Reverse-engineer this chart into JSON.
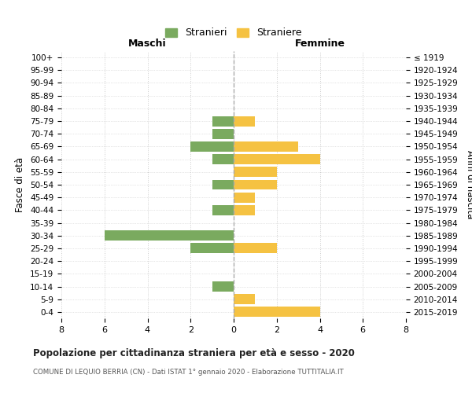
{
  "age_groups": [
    "100+",
    "95-99",
    "90-94",
    "85-89",
    "80-84",
    "75-79",
    "70-74",
    "65-69",
    "60-64",
    "55-59",
    "50-54",
    "45-49",
    "40-44",
    "35-39",
    "30-34",
    "25-29",
    "20-24",
    "15-19",
    "10-14",
    "5-9",
    "0-4"
  ],
  "birth_years": [
    "≤ 1919",
    "1920-1924",
    "1925-1929",
    "1930-1934",
    "1935-1939",
    "1940-1944",
    "1945-1949",
    "1950-1954",
    "1955-1959",
    "1960-1964",
    "1965-1969",
    "1970-1974",
    "1975-1979",
    "1980-1984",
    "1985-1989",
    "1990-1994",
    "1995-1999",
    "2000-2004",
    "2005-2009",
    "2010-2014",
    "2015-2019"
  ],
  "maschi": [
    0,
    0,
    0,
    0,
    0,
    1,
    1,
    2,
    1,
    0,
    1,
    0,
    1,
    0,
    6,
    2,
    0,
    0,
    1,
    0,
    0
  ],
  "femmine": [
    0,
    0,
    0,
    0,
    0,
    1,
    0,
    3,
    4,
    2,
    2,
    1,
    1,
    0,
    0,
    2,
    0,
    0,
    0,
    1,
    4
  ],
  "color_maschi": "#7aaa5f",
  "color_femmine": "#f5c242",
  "xlim": 8,
  "title": "Popolazione per cittadinanza straniera per età e sesso - 2020",
  "subtitle": "COMUNE DI LEQUIO BERRIA (CN) - Dati ISTAT 1° gennaio 2020 - Elaborazione TUTTITALIA.IT",
  "ylabel_left": "Fasce di età",
  "ylabel_right": "Anni di nascita",
  "xlabel_maschi": "Maschi",
  "xlabel_femmine": "Femmine",
  "legend_maschi": "Stranieri",
  "legend_femmine": "Straniere",
  "background_color": "#ffffff",
  "grid_color": "#cccccc",
  "bar_height": 0.8
}
